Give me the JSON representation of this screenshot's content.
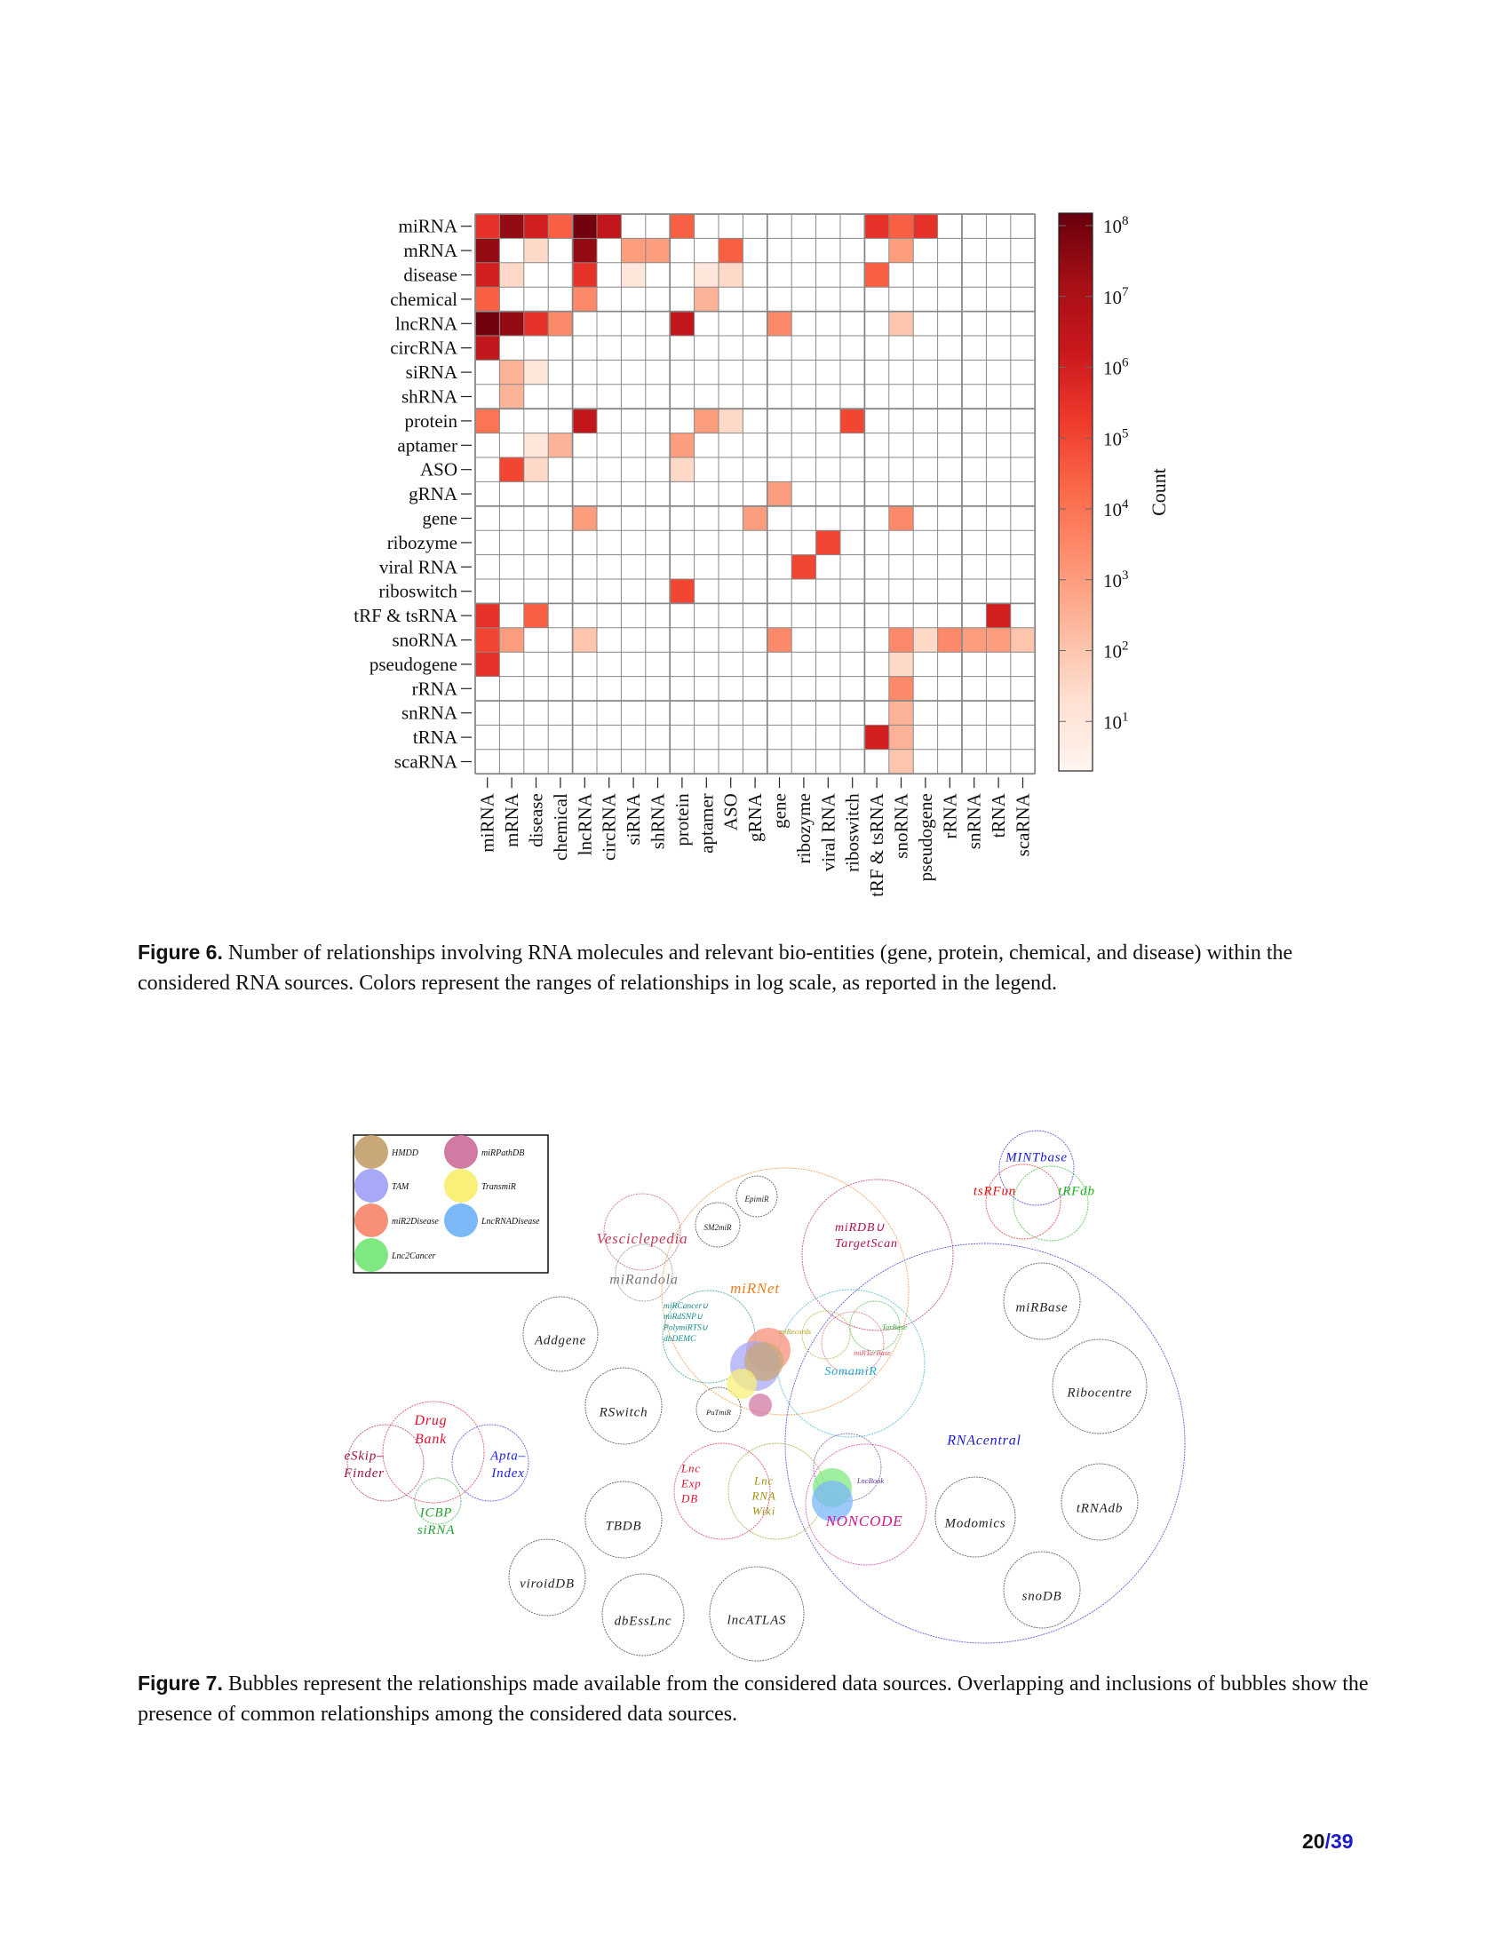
{
  "figure6": {
    "caption_label": "Figure 6.",
    "caption_text": "Number of relationships involving RNA molecules and relevant bio-entities (gene, protein, chemical, and disease) within the considered RNA sources. Colors represent the ranges of relationships in log scale, as reported in the legend."
  },
  "chart_data": {
    "type": "heatmap",
    "categories": [
      "miRNA",
      "mRNA",
      "disease",
      "chemical",
      "lncRNA",
      "circRNA",
      "siRNA",
      "shRNA",
      "protein",
      "aptamer",
      "ASO",
      "gRNA",
      "gene",
      "ribozyme",
      "viral RNA",
      "riboswitch",
      "tRF & tsRNA",
      "snoRNA",
      "pseudogene",
      "rRNA",
      "snRNA",
      "tRNA",
      "scaRNA"
    ],
    "colorbar": {
      "label": "Count",
      "scale": "log",
      "range": [
        2,
        150000000
      ],
      "ticks": [
        {
          "base": "10",
          "exp": "1",
          "value": 10
        },
        {
          "base": "10",
          "exp": "2",
          "value": 100
        },
        {
          "base": "10",
          "exp": "3",
          "value": 1000
        },
        {
          "base": "10",
          "exp": "4",
          "value": 10000
        },
        {
          "base": "10",
          "exp": "5",
          "value": 100000
        },
        {
          "base": "10",
          "exp": "6",
          "value": 1000000
        },
        {
          "base": "10",
          "exp": "7",
          "value": 10000000
        },
        {
          "base": "10",
          "exp": "8",
          "value": 100000000
        }
      ],
      "colormap": [
        "#fff5f0",
        "#fee0d2",
        "#fcbba1",
        "#fc9272",
        "#fb6a4a",
        "#ef3b2c",
        "#cb181d",
        "#a50f15",
        "#67000d"
      ]
    },
    "cells": [
      [
        "miRNA",
        "miRNA",
        300000
      ],
      [
        "miRNA",
        "mRNA",
        30000000
      ],
      [
        "miRNA",
        "disease",
        1000000
      ],
      [
        "miRNA",
        "chemical",
        30000
      ],
      [
        "miRNA",
        "lncRNA",
        100000000
      ],
      [
        "miRNA",
        "circRNA",
        3000000
      ],
      [
        "miRNA",
        "protein",
        30000
      ],
      [
        "miRNA",
        "tRF & tsRNA",
        300000
      ],
      [
        "miRNA",
        "snoRNA",
        30000
      ],
      [
        "miRNA",
        "pseudogene",
        300000
      ],
      [
        "mRNA",
        "miRNA",
        30000000
      ],
      [
        "mRNA",
        "disease",
        30
      ],
      [
        "mRNA",
        "lncRNA",
        30000000
      ],
      [
        "mRNA",
        "siRNA",
        1000
      ],
      [
        "mRNA",
        "shRNA",
        1000
      ],
      [
        "mRNA",
        "ASO",
        30000
      ],
      [
        "mRNA",
        "snoRNA",
        1000
      ],
      [
        "disease",
        "miRNA",
        1000000
      ],
      [
        "disease",
        "mRNA",
        30
      ],
      [
        "disease",
        "lncRNA",
        300000
      ],
      [
        "disease",
        "siRNA",
        10
      ],
      [
        "disease",
        "aptamer",
        10
      ],
      [
        "disease",
        "ASO",
        30
      ],
      [
        "disease",
        "tRF & tsRNA",
        30000
      ],
      [
        "chemical",
        "miRNA",
        30000
      ],
      [
        "chemical",
        "lncRNA",
        3000
      ],
      [
        "chemical",
        "aptamer",
        300
      ],
      [
        "lncRNA",
        "miRNA",
        100000000
      ],
      [
        "lncRNA",
        "mRNA",
        30000000
      ],
      [
        "lncRNA",
        "disease",
        300000
      ],
      [
        "lncRNA",
        "chemical",
        3000
      ],
      [
        "lncRNA",
        "protein",
        3000000
      ],
      [
        "lncRNA",
        "gene",
        3000
      ],
      [
        "lncRNA",
        "snoRNA",
        100
      ],
      [
        "circRNA",
        "miRNA",
        3000000
      ],
      [
        "siRNA",
        "mRNA",
        300
      ],
      [
        "siRNA",
        "disease",
        10
      ],
      [
        "shRNA",
        "mRNA",
        300
      ],
      [
        "protein",
        "miRNA",
        10000
      ],
      [
        "protein",
        "lncRNA",
        3000000
      ],
      [
        "protein",
        "aptamer",
        1000
      ],
      [
        "protein",
        "ASO",
        30
      ],
      [
        "protein",
        "riboswitch",
        100000
      ],
      [
        "aptamer",
        "disease",
        10
      ],
      [
        "aptamer",
        "chemical",
        300
      ],
      [
        "aptamer",
        "protein",
        1000
      ],
      [
        "ASO",
        "mRNA",
        100000
      ],
      [
        "ASO",
        "disease",
        30
      ],
      [
        "ASO",
        "protein",
        30
      ],
      [
        "gRNA",
        "gene",
        1000
      ],
      [
        "gene",
        "lncRNA",
        1000
      ],
      [
        "gene",
        "gRNA",
        1000
      ],
      [
        "gene",
        "snoRNA",
        3000
      ],
      [
        "ribozyme",
        "viral RNA",
        100000
      ],
      [
        "viral RNA",
        "ribozyme",
        100000
      ],
      [
        "riboswitch",
        "protein",
        100000
      ],
      [
        "tRF & tsRNA",
        "miRNA",
        300000
      ],
      [
        "tRF & tsRNA",
        "disease",
        30000
      ],
      [
        "tRF & tsRNA",
        "tRNA",
        1000000
      ],
      [
        "snoRNA",
        "miRNA",
        100000
      ],
      [
        "snoRNA",
        "mRNA",
        1000
      ],
      [
        "snoRNA",
        "lncRNA",
        100
      ],
      [
        "snoRNA",
        "gene",
        3000
      ],
      [
        "snoRNA",
        "snoRNA",
        3000
      ],
      [
        "snoRNA",
        "pseudogene",
        30
      ],
      [
        "snoRNA",
        "rRNA",
        3000
      ],
      [
        "snoRNA",
        "snRNA",
        1000
      ],
      [
        "snoRNA",
        "tRNA",
        1000
      ],
      [
        "snoRNA",
        "scaRNA",
        100
      ],
      [
        "pseudogene",
        "miRNA",
        300000
      ],
      [
        "pseudogene",
        "snoRNA",
        30
      ],
      [
        "rRNA",
        "snoRNA",
        3000
      ],
      [
        "snRNA",
        "snoRNA",
        300
      ],
      [
        "tRNA",
        "tRF & tsRNA",
        1000000
      ],
      [
        "tRNA",
        "snoRNA",
        300
      ],
      [
        "scaRNA",
        "snoRNA",
        100
      ]
    ]
  },
  "figure7": {
    "caption_label": "Figure 7.",
    "caption_text": "Bubbles represent the relationships made available from the considered data sources. Overlapping and inclusions of bubbles show the presence of common relationships among the considered data sources.",
    "legend": [
      {
        "id": "hmdd",
        "label": "HMDD",
        "color": "#c8a878"
      },
      {
        "id": "mirpathdb",
        "label": "miRPathDB",
        "color": "#d07aa4"
      },
      {
        "id": "tam",
        "label": "TAM",
        "color": "#a8a8f8"
      },
      {
        "id": "transmir",
        "label": "TransmiR",
        "color": "#f8f078"
      },
      {
        "id": "mir2disease",
        "label": "miR2Disease",
        "color": "#f89078"
      },
      {
        "id": "lncrnadisease",
        "label": "LncRNADisease",
        "color": "#7ab8f8"
      },
      {
        "id": "lnc2cancer",
        "label": "Lnc2Cancer",
        "color": "#80e880"
      }
    ],
    "bubbles": [
      {
        "id": "mirnet",
        "label": [
          "miRNet"
        ],
        "color": "#f08020"
      },
      {
        "id": "epimir",
        "label": [
          "EpimiR"
        ],
        "color": "#222222"
      },
      {
        "id": "sm2mir",
        "label": [
          "SM2miR"
        ],
        "color": "#222222"
      },
      {
        "id": "vesiclepedia",
        "label": [
          "Vesciclepedia"
        ],
        "color": "#c03a5a"
      },
      {
        "id": "mirandola",
        "label": [
          "miRandola"
        ],
        "color": "#777777"
      },
      {
        "id": "mirdb",
        "label": [
          "miRDB∪",
          "TargetScan"
        ],
        "color": "#b01050"
      },
      {
        "id": "mircancer",
        "label": [
          "miRCancer∪",
          "miRdSNP∪",
          "PolymiRTS∪",
          "dbDEMC"
        ],
        "color": "#118888"
      },
      {
        "id": "mirecords",
        "label": [
          "miRecords"
        ],
        "color": "#b0a020"
      },
      {
        "id": "tarbase",
        "label": [
          "TarBase"
        ],
        "color": "#30b030"
      },
      {
        "id": "mirtarbase",
        "label": [
          "miRTarBase"
        ],
        "color": "#e05060"
      },
      {
        "id": "somamir",
        "label": [
          "SomamiR"
        ],
        "color": "#20a8d0"
      },
      {
        "id": "rnacentral",
        "label": [
          "RNAcentral"
        ],
        "color": "#1a1ad0"
      },
      {
        "id": "mintbase",
        "label": [
          "MINTbase"
        ],
        "color": "#1a1ad0"
      },
      {
        "id": "tsrfun",
        "label": [
          "tsRFun"
        ],
        "color": "#e01010"
      },
      {
        "id": "trfdb",
        "label": [
          "tRFdb"
        ],
        "color": "#20b020"
      },
      {
        "id": "mirbase",
        "label": [
          "miRBase"
        ],
        "color": "#222222"
      },
      {
        "id": "ribocentre",
        "label": [
          "Ribocentre"
        ],
        "color": "#222222"
      },
      {
        "id": "trnadb",
        "label": [
          "tRNAdb"
        ],
        "color": "#222222"
      },
      {
        "id": "modomics",
        "label": [
          "Modomics"
        ],
        "color": "#222222"
      },
      {
        "id": "snodb",
        "label": [
          "snoDB"
        ],
        "color": "#222222"
      },
      {
        "id": "noncode",
        "label": [
          "NONCODE"
        ],
        "color": "#d01890"
      },
      {
        "id": "lncbook",
        "label": [
          "LncBook"
        ],
        "color": "#6030a0"
      },
      {
        "id": "addgene",
        "label": [
          "Addgene"
        ],
        "color": "#222222"
      },
      {
        "id": "rswitch",
        "label": [
          "RSwitch"
        ],
        "color": "#222222"
      },
      {
        "id": "putmir",
        "label": [
          "PuTmiR"
        ],
        "color": "#222222"
      },
      {
        "id": "drugbank",
        "label": [
          "Drug",
          "Bank"
        ],
        "color": "#e01030"
      },
      {
        "id": "eskipfinder",
        "label": [
          "eSkip–",
          "Finder"
        ],
        "color": "#a01040"
      },
      {
        "id": "aptaindex",
        "label": [
          "Apta–",
          "Index"
        ],
        "color": "#2020e0"
      },
      {
        "id": "icbp",
        "label": [
          "ICBP",
          "siRNA"
        ],
        "color": "#20a030"
      },
      {
        "id": "tbdb",
        "label": [
          "TBDB"
        ],
        "color": "#222222"
      },
      {
        "id": "lncexpdb",
        "label": [
          "Lnc",
          "Exp",
          "DB"
        ],
        "color": "#e01030"
      },
      {
        "id": "lncrnawiki",
        "label": [
          "Lnc",
          "RNA",
          "Wiki"
        ],
        "color": "#a09010"
      },
      {
        "id": "viroiddb",
        "label": [
          "viroidDB"
        ],
        "color": "#222222"
      },
      {
        "id": "dbesslnc",
        "label": [
          "dbEssLnc"
        ],
        "color": "#222222"
      },
      {
        "id": "lncatlas",
        "label": [
          "lncATLAS"
        ],
        "color": "#222222"
      }
    ]
  },
  "page": {
    "current": "20",
    "total": "/39"
  }
}
